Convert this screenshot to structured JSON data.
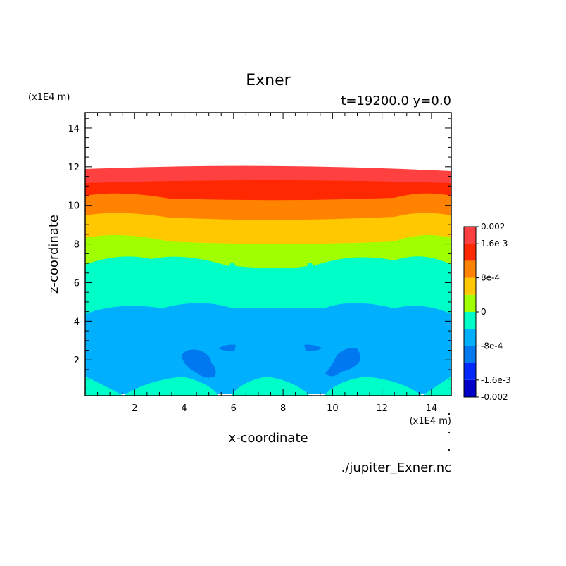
{
  "chart_data": {
    "type": "heatmap",
    "title": "Exner",
    "subtitle": "t=19200.0 y=0.0",
    "xlabel": "x-coordinate",
    "ylabel": "z-coordinate",
    "x_unit": "(x1E4 m)",
    "y_unit": "(x1E4 m)",
    "xlim": [
      0,
      14.8
    ],
    "ylim": [
      0.15,
      14.8
    ],
    "x_ticks": [
      "2",
      "4",
      "6",
      "8",
      "10",
      "12",
      "14"
    ],
    "y_ticks": [
      "2",
      "4",
      "6",
      "8",
      "10",
      "12",
      "14"
    ],
    "x_tick_values": [
      2,
      4,
      6,
      8,
      10,
      12,
      14
    ],
    "y_tick_values": [
      2,
      4,
      6,
      8,
      10,
      12,
      14
    ],
    "colorbar": {
      "levels": [
        -0.002,
        -0.0016,
        -0.0012,
        -0.0008,
        -0.0004,
        0,
        0.0004,
        0.0008,
        0.0012,
        0.0016,
        0.002
      ],
      "colors": [
        "#0000c8",
        "#0028ff",
        "#0078f0",
        "#00b0ff",
        "#00ffc8",
        "#a0ff00",
        "#ffc800",
        "#ff8200",
        "#ff2800",
        "#ff4040"
      ],
      "labels": [
        "0.002",
        "1.6e-3",
        "8e-4",
        "0",
        "-8e-4",
        "-1.6e-3",
        "-0.002"
      ],
      "label_values": [
        0.002,
        0.0016,
        0.0008,
        0,
        -0.0008,
        -0.0016,
        -0.002
      ]
    },
    "bands": [
      {
        "level": "1.6e-3 to 0.002",
        "color": "#ff4040"
      },
      {
        "level": "1.2e-3 to 1.6e-3",
        "color": "#ff2800"
      },
      {
        "level": "8e-4 to 1.2e-3",
        "color": "#ff8200"
      },
      {
        "level": "4e-4 to 8e-4",
        "color": "#ffc800"
      },
      {
        "level": "0 to 4e-4",
        "color": "#a0ff00"
      },
      {
        "level": "-4e-4 to 0",
        "color": "#00ffc8"
      },
      {
        "level": "-8e-4 to -4e-4",
        "color": "#00b0ff"
      },
      {
        "level": "-1.2e-3 to -8e-4",
        "color": "#0078f0"
      }
    ],
    "grid": false,
    "legend": "right"
  },
  "footer": {
    "filename": "./jupiter_Exner.nc"
  }
}
